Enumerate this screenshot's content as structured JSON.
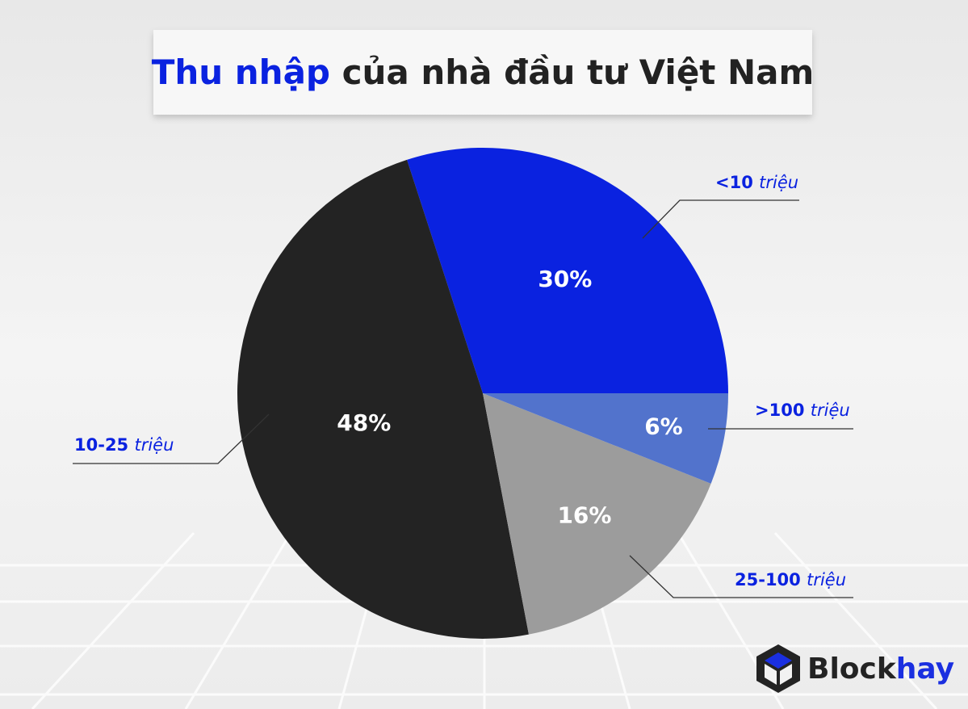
{
  "chart_data": {
    "type": "pie",
    "title": [
      "Thu nhập",
      "của nhà đầu tư Việt Nam"
    ],
    "categories": [
      "<10 triệu",
      "10-25 triệu",
      "25-100 triệu",
      ">100 triệu"
    ],
    "values": [
      30,
      48,
      16,
      6
    ],
    "value_labels": [
      "30%",
      "48%",
      "16%",
      "6%"
    ],
    "colors": [
      "#0a22e0",
      "#232323",
      "#9c9c9c",
      "#5273cc"
    ]
  },
  "brand": [
    "Block",
    "hay"
  ]
}
